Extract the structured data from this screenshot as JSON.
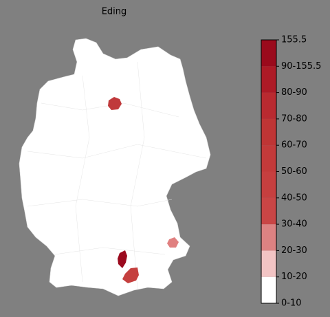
{
  "title": "Eding",
  "legend": {
    "labels": [
      "0-10",
      "10-20",
      "20-30",
      "30-40",
      "40-50",
      "50-60",
      "60-70",
      "70-80",
      "80-90",
      "90-155.5",
      "155.5"
    ],
    "colors": [
      "#ffffff",
      "#f2c4c4",
      "#dd8282",
      "#c94545",
      "#c63f3f",
      "#c33a3a",
      "#bf3535",
      "#b92a30",
      "#ad1a26",
      "#9a0a1c"
    ]
  }
}
